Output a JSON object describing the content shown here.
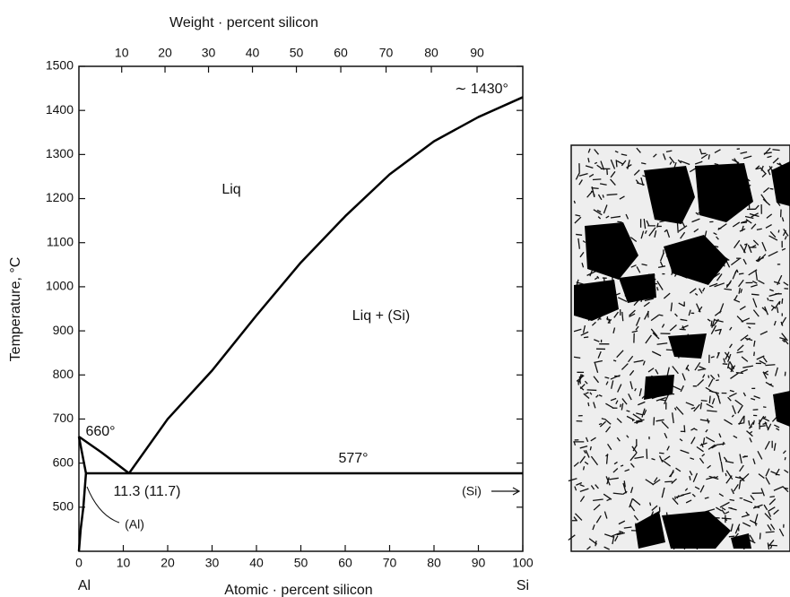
{
  "chart_data": {
    "type": "line",
    "x_label": "Atomic · percent silicon",
    "x2_label": "Weight · percent silicon",
    "y_label": "Temperature, °C",
    "xlim": [
      0,
      100
    ],
    "ylim": [
      400,
      1500
    ],
    "xticks": [
      0,
      10,
      20,
      30,
      40,
      50,
      60,
      70,
      80,
      90,
      100
    ],
    "x2ticks": [
      {
        "value": 9.64,
        "label": "10"
      },
      {
        "value": 19.4,
        "label": "20"
      },
      {
        "value": 29.2,
        "label": "30"
      },
      {
        "value": 39.1,
        "label": "40"
      },
      {
        "value": 49.0,
        "label": "50"
      },
      {
        "value": 59.0,
        "label": "60"
      },
      {
        "value": 69.2,
        "label": "70"
      },
      {
        "value": 79.4,
        "label": "80"
      },
      {
        "value": 89.7,
        "label": "90"
      }
    ],
    "yticks": [
      500,
      600,
      700,
      800,
      900,
      1000,
      1100,
      1200,
      1300,
      1400,
      1500
    ],
    "series": [
      {
        "color": "#000000",
        "x": [
          0,
          5,
          11.3
        ],
        "values": [
          660,
          625,
          577
        ]
      },
      {
        "color": "#000000",
        "x": [
          11.3,
          20,
          30,
          40,
          50,
          60,
          70,
          80,
          90,
          100
        ],
        "values": [
          577,
          700,
          810,
          935,
          1055,
          1160,
          1255,
          1330,
          1385,
          1430
        ]
      },
      {
        "color": "#000000",
        "x": [
          0,
          1.59
        ],
        "values": [
          660,
          577
        ]
      },
      {
        "color": "#000000",
        "x": [
          1.59,
          1.0,
          0.4,
          0
        ],
        "values": [
          577,
          500,
          450,
          400
        ]
      },
      {
        "color": "#000000",
        "x": [
          1.59,
          100
        ],
        "values": [
          577,
          577
        ]
      }
    ],
    "end_labels": [
      "Al",
      "Si"
    ],
    "annotations": [
      "Liq",
      "Liq + (Si)",
      "∼ 1430°",
      "660°",
      "577°",
      "11.3 (11.7)",
      "(Al)",
      "(Si)"
    ]
  }
}
